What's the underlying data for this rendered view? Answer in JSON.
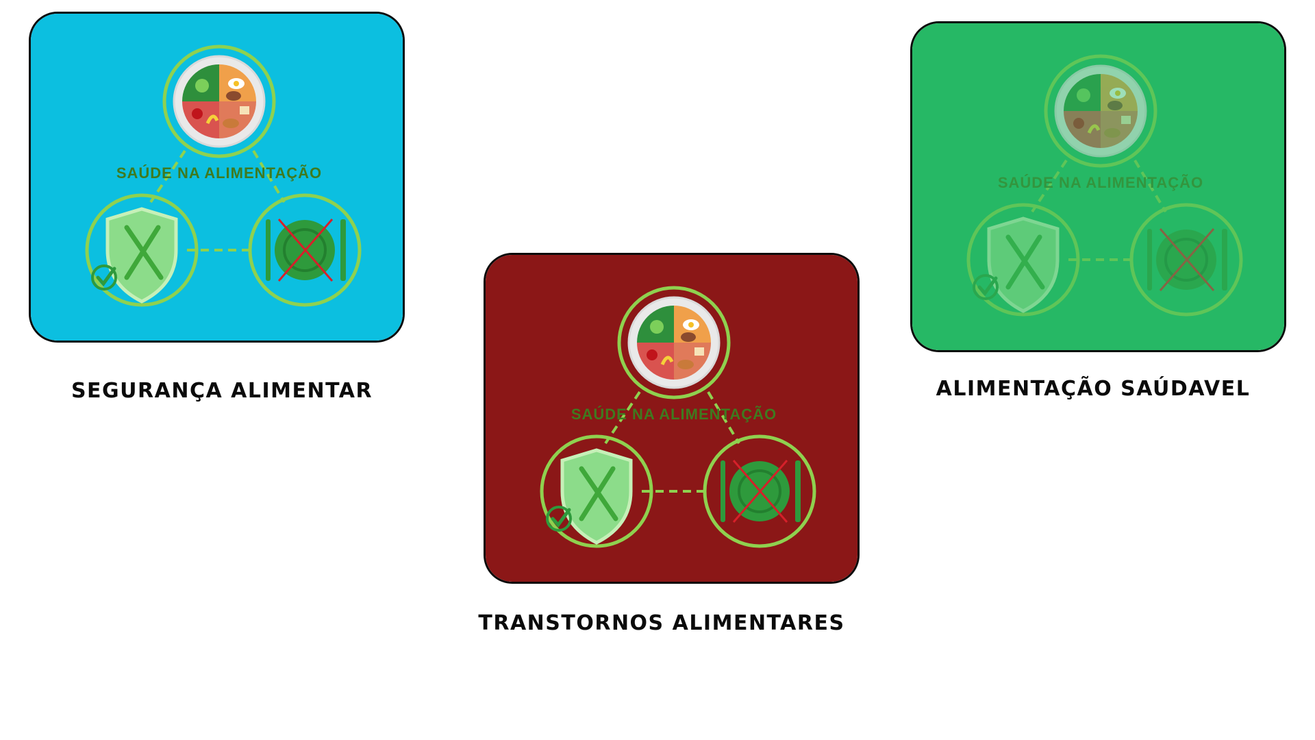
{
  "cards": [
    {
      "caption": "SEGURANÇA ALIMENTAR",
      "diagram_label": "SAÚDE NA ALIMENTAÇÃO",
      "background": "#0cbfe0",
      "icon_opacity": 1
    },
    {
      "caption": "TRANSTORNOS ALIMENTARES",
      "diagram_label": "SAÚDE NA ALIMENTAÇÃO",
      "background": "#8b1717",
      "icon_opacity": 1
    },
    {
      "caption": "ALIMENTAÇÃO SAÚDAVEL",
      "diagram_label": "SAÚDE NA ALIMENTAÇÃO",
      "background": "#26b865",
      "icon_opacity": 0.55
    }
  ],
  "colors": {
    "ring": "#8fd14f",
    "label": "#3f7a1f",
    "cross": "#d6202a",
    "plate_green": "#2e9a3c",
    "shield_fill": "#8cdc8a",
    "text": "#0b0b0b"
  },
  "icons": [
    "plate-food-icon",
    "shield-cutlery-icon",
    "no-eating-plate-icon",
    "checkmark-icon"
  ]
}
